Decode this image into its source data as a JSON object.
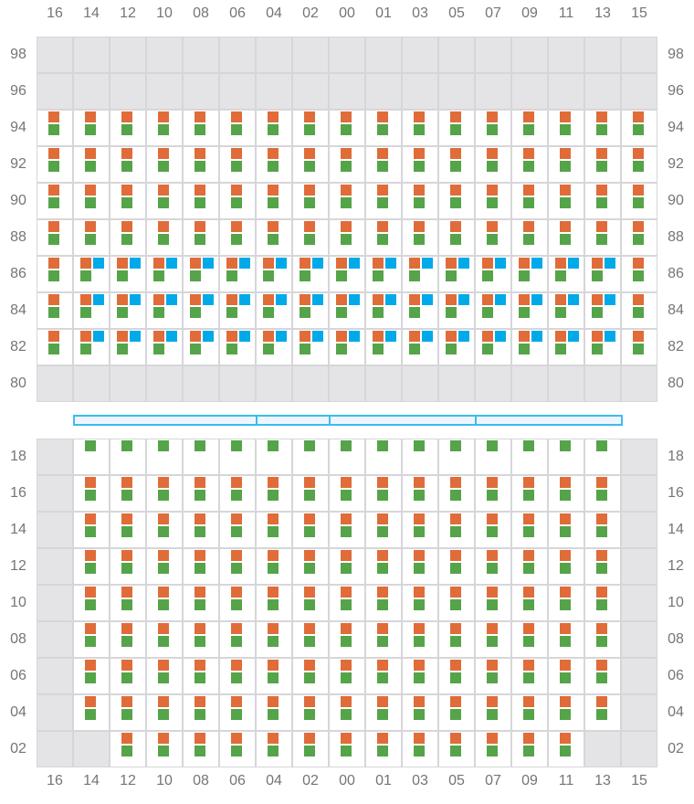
{
  "colors": {
    "orange": "#e06c39",
    "green": "#55a449",
    "blue": "#00aae8",
    "gray": "#e4e4e6"
  },
  "legend_codes": {
    "x": "unavailable (gray)",
    "o": "orange + green",
    "b": "orange + blue + green",
    "n": "green only"
  },
  "columns": [
    "16",
    "14",
    "12",
    "10",
    "08",
    "06",
    "04",
    "02",
    "00",
    "01",
    "03",
    "05",
    "07",
    "09",
    "11",
    "13",
    "15"
  ],
  "top_section": {
    "rows": [
      {
        "label": "98",
        "cells": "xxxxxxxxxxxxxxxxx"
      },
      {
        "label": "96",
        "cells": "xxxxxxxxxxxxxxxxx"
      },
      {
        "label": "94",
        "cells": "ooooooooooooooooo"
      },
      {
        "label": "92",
        "cells": "ooooooooooooooooo"
      },
      {
        "label": "90",
        "cells": "ooooooooooooooooo"
      },
      {
        "label": "88",
        "cells": "ooooooooooooooooo"
      },
      {
        "label": "86",
        "cells": "obbbbbbbbbbbbbbbo"
      },
      {
        "label": "84",
        "cells": "obbbbbbbbbbbbbbbo"
      },
      {
        "label": "82",
        "cells": "obbbbbbbbbbbbbbbo"
      },
      {
        "label": "80",
        "cells": "xxxxxxxxxxxxxxxxx"
      }
    ]
  },
  "bottom_section": {
    "rows": [
      {
        "label": "18",
        "cells": "xnnnnnnnnnnnnnnnx"
      },
      {
        "label": "16",
        "cells": "xooooooooooooooox"
      },
      {
        "label": "14",
        "cells": "xooooooooooooooox"
      },
      {
        "label": "12",
        "cells": "xooooooooooooooox"
      },
      {
        "label": "10",
        "cells": "xooooooooooooooox"
      },
      {
        "label": "08",
        "cells": "xooooooooooooooox"
      },
      {
        "label": "06",
        "cells": "xooooooooooooooox"
      },
      {
        "label": "04",
        "cells": "xooooooooooooooox"
      },
      {
        "label": "02",
        "cells": "xxoooooooooooooxx"
      }
    ]
  },
  "divider_segments": [
    {
      "from_col": "14",
      "to_col": "06"
    },
    {
      "from_col": "04",
      "to_col": "02"
    },
    {
      "from_col": "00",
      "to_col": "05"
    },
    {
      "from_col": "07",
      "to_col": "13"
    }
  ]
}
